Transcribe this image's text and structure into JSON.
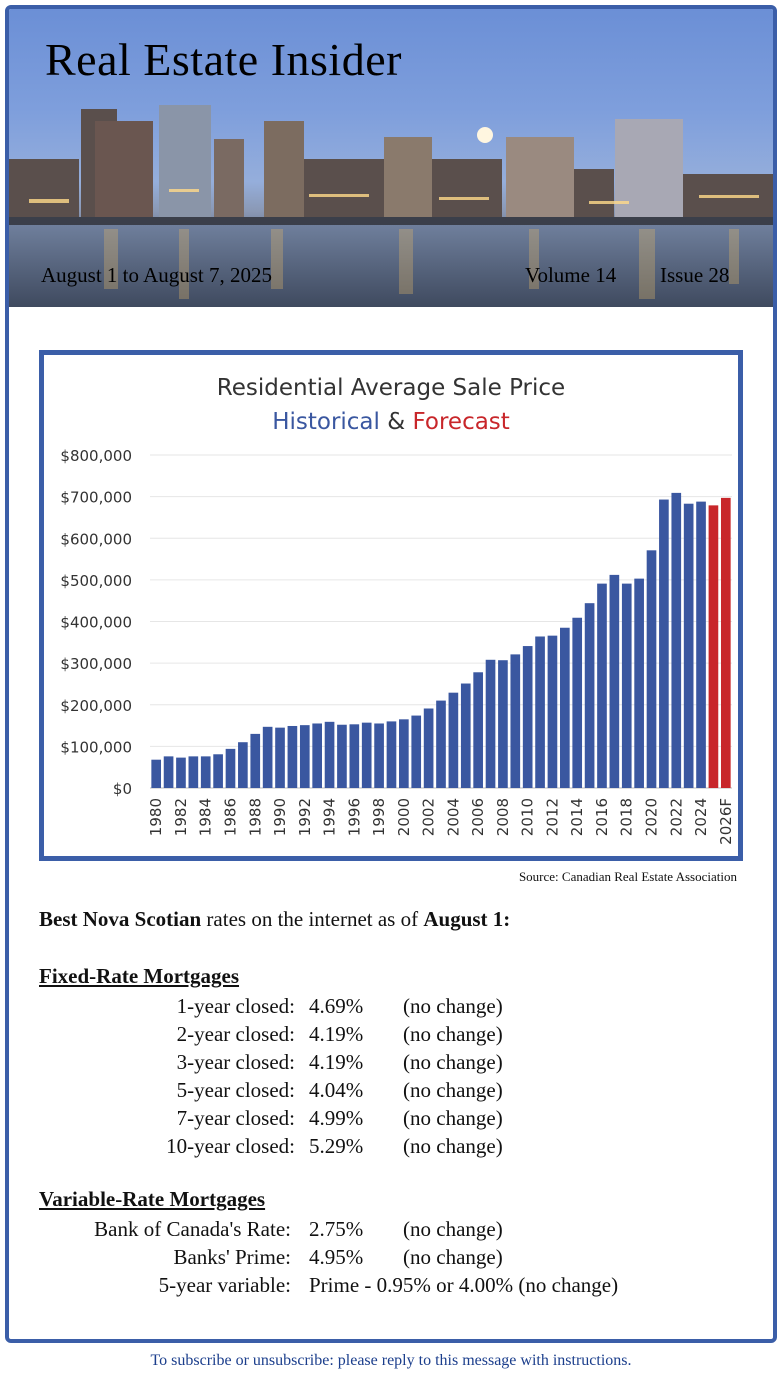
{
  "banner": {
    "title": "Real Estate Insider",
    "date_range": "August 1 to August 7, 2025",
    "volume": "Volume 14",
    "issue": "Issue 28"
  },
  "chart_data": {
    "type": "bar",
    "title": "Residential Average Sale Price",
    "subtitle_historical": "Historical",
    "subtitle_amp": "&",
    "subtitle_forecast": "Forecast",
    "categories": [
      "1980",
      "1981",
      "1982",
      "1983",
      "1984",
      "1985",
      "1986",
      "1987",
      "1988",
      "1989",
      "1990",
      "1991",
      "1992",
      "1993",
      "1994",
      "1995",
      "1996",
      "1997",
      "1998",
      "1999",
      "2000",
      "2001",
      "2002",
      "2003",
      "2004",
      "2005",
      "2006",
      "2007",
      "2008",
      "2009",
      "2010",
      "2011",
      "2012",
      "2013",
      "2014",
      "2015",
      "2016",
      "2017",
      "2018",
      "2019",
      "2020",
      "2021",
      "2022",
      "2023",
      "2024",
      "2025F",
      "2026F"
    ],
    "tick_labels": [
      "1980",
      "1982",
      "1984",
      "1986",
      "1988",
      "1990",
      "1992",
      "1994",
      "1996",
      "1998",
      "2000",
      "2002",
      "2004",
      "2006",
      "2008",
      "2010",
      "2012",
      "2014",
      "2016",
      "2018",
      "2020",
      "2022",
      "2024",
      "2026F"
    ],
    "values": [
      68000,
      76000,
      73000,
      76000,
      76000,
      81000,
      94000,
      110000,
      130000,
      147000,
      145000,
      149000,
      151000,
      155000,
      159000,
      152000,
      153000,
      157000,
      155000,
      160000,
      165000,
      174000,
      191000,
      210000,
      229000,
      251000,
      278000,
      308000,
      307000,
      321000,
      341000,
      364000,
      366000,
      385000,
      409000,
      444000,
      491000,
      512000,
      491000,
      503000,
      571000,
      693000,
      709000,
      683000,
      688000,
      679000,
      697000
    ],
    "forecast_from_index": 45,
    "y_ticks": [
      "$800,000",
      "$700,000",
      "$600,000",
      "$500,000",
      "$400,000",
      "$300,000",
      "$200,000",
      "$100,000",
      "$0"
    ],
    "ylim": [
      0,
      800000
    ],
    "grid": true,
    "colors": {
      "historical": "#3a57a0",
      "forecast": "#c8262a",
      "title": "#333333"
    }
  },
  "source": "Source: Canadian Real Estate Association",
  "intro": {
    "bold_1": "Best Nova Scotian",
    "text": " rates on the internet as of ",
    "bold_2": "August 1:"
  },
  "fixed": {
    "title": "Fixed-Rate Mortgages",
    "rows": [
      {
        "label": "1-year closed:",
        "value": "4.69%",
        "change": "(no change)"
      },
      {
        "label": "2-year closed:",
        "value": "4.19%",
        "change": "(no change)"
      },
      {
        "label": "3-year closed:",
        "value": "4.19%",
        "change": "(no change)"
      },
      {
        "label": "5-year closed:",
        "value": "4.04%",
        "change": "(no change)"
      },
      {
        "label": "7-year closed:",
        "value": "4.99%",
        "change": "(no change)"
      },
      {
        "label": "10-year closed:",
        "value": "5.29%",
        "change": "(no change)"
      }
    ]
  },
  "variable": {
    "title": "Variable-Rate Mortgages",
    "rows": [
      {
        "label": "Bank of Canada's Rate:",
        "value": "2.75%",
        "change": "(no change)"
      },
      {
        "label": "Banks' Prime:",
        "value": "4.95%",
        "change": "(no change)"
      },
      {
        "label": "5-year variable:",
        "value": "Prime - 0.95% or 4.00% (no change)",
        "change": ""
      }
    ]
  },
  "footer": "To subscribe or unsubscribe: please reply to this message with instructions."
}
